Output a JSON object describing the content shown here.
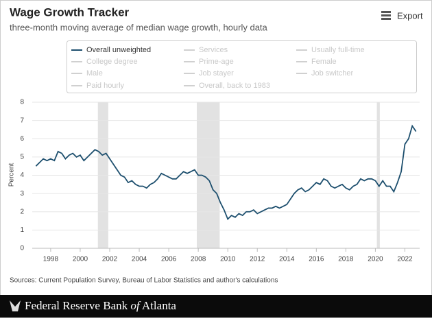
{
  "chart_data": {
    "type": "line",
    "title": "Wage Growth Tracker",
    "subtitle": "three-month moving average of median wage growth, hourly data",
    "export_label": "Export",
    "y_label": "Percent",
    "source": "Sources: Current Population Survey, Bureau of Labor Statistics and author's calculations",
    "footer": [
      "Federal Reserve Bank",
      "of",
      "Atlanta"
    ],
    "xlim": [
      1996.75,
      2023.0
    ],
    "xticks": [
      1998,
      2000,
      2002,
      2004,
      2006,
      2008,
      2010,
      2012,
      2014,
      2016,
      2018,
      2020,
      2022
    ],
    "ylim": [
      0,
      8
    ],
    "yticks": [
      0,
      1,
      2,
      3,
      4,
      5,
      6,
      7,
      8
    ],
    "grid": true,
    "shaded_ranges": [
      [
        2001.2,
        2001.9
      ],
      [
        2007.9,
        2009.45
      ],
      [
        2020.1,
        2020.3
      ]
    ],
    "x": [
      1997.0,
      1997.25,
      1997.5,
      1997.75,
      1998.0,
      1998.25,
      1998.5,
      1998.75,
      1999.0,
      1999.25,
      1999.5,
      1999.75,
      2000.0,
      2000.25,
      2000.5,
      2000.75,
      2001.0,
      2001.25,
      2001.5,
      2001.75,
      2002.0,
      2002.25,
      2002.5,
      2002.75,
      2003.0,
      2003.25,
      2003.5,
      2003.75,
      2004.0,
      2004.25,
      2004.5,
      2004.75,
      2005.0,
      2005.25,
      2005.5,
      2005.75,
      2006.0,
      2006.25,
      2006.5,
      2006.75,
      2007.0,
      2007.25,
      2007.5,
      2007.75,
      2008.0,
      2008.25,
      2008.5,
      2008.75,
      2009.0,
      2009.25,
      2009.5,
      2009.75,
      2010.0,
      2010.25,
      2010.5,
      2010.75,
      2011.0,
      2011.25,
      2011.5,
      2011.75,
      2012.0,
      2012.25,
      2012.5,
      2012.75,
      2013.0,
      2013.25,
      2013.5,
      2013.75,
      2014.0,
      2014.25,
      2014.5,
      2014.75,
      2015.0,
      2015.25,
      2015.5,
      2015.75,
      2016.0,
      2016.25,
      2016.5,
      2016.75,
      2017.0,
      2017.25,
      2017.5,
      2017.75,
      2018.0,
      2018.25,
      2018.5,
      2018.75,
      2019.0,
      2019.25,
      2019.5,
      2019.75,
      2020.0,
      2020.25,
      2020.5,
      2020.75,
      2021.0,
      2021.25,
      2021.5,
      2021.75,
      2022.0,
      2022.25,
      2022.5,
      2022.75
    ],
    "series": [
      {
        "name": "Overall unweighted",
        "color": "#1d4f6e",
        "values": [
          4.5,
          4.7,
          4.9,
          4.8,
          4.9,
          4.8,
          5.3,
          5.2,
          4.9,
          5.1,
          5.2,
          5.0,
          5.1,
          4.8,
          5.0,
          5.2,
          5.4,
          5.3,
          5.1,
          5.2,
          4.9,
          4.6,
          4.3,
          4.0,
          3.9,
          3.6,
          3.7,
          3.5,
          3.4,
          3.4,
          3.3,
          3.5,
          3.6,
          3.8,
          4.1,
          4.0,
          3.9,
          3.8,
          3.8,
          4.0,
          4.2,
          4.1,
          4.2,
          4.3,
          4.0,
          4.0,
          3.9,
          3.7,
          3.2,
          3.0,
          2.5,
          2.1,
          1.6,
          1.8,
          1.7,
          1.9,
          1.8,
          2.0,
          2.0,
          2.1,
          1.9,
          2.0,
          2.1,
          2.2,
          2.2,
          2.3,
          2.2,
          2.3,
          2.4,
          2.7,
          3.0,
          3.2,
          3.3,
          3.1,
          3.2,
          3.4,
          3.6,
          3.5,
          3.8,
          3.7,
          3.4,
          3.3,
          3.4,
          3.5,
          3.3,
          3.2,
          3.4,
          3.5,
          3.8,
          3.7,
          3.8,
          3.8,
          3.7,
          3.4,
          3.7,
          3.4,
          3.4,
          3.1,
          3.6,
          4.2,
          5.7,
          6.0,
          6.7,
          6.4
        ]
      }
    ],
    "inactive_series": [
      "Services",
      "Usually full-time",
      "College degree",
      "Prime-age",
      "Female",
      "Male",
      "Job stayer",
      "Job switcher",
      "Paid hourly",
      "Overall, back to 1983"
    ]
  }
}
